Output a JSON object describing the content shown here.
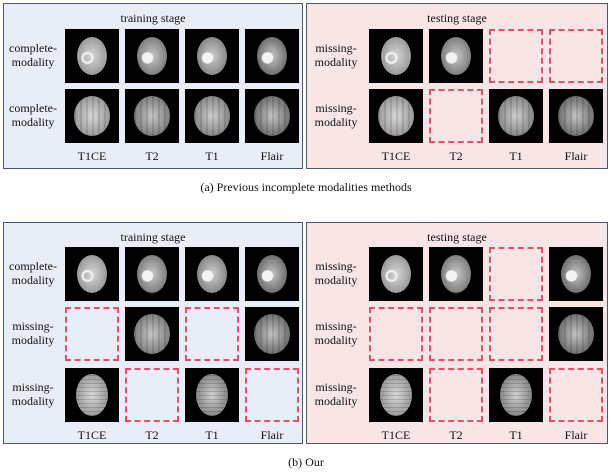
{
  "columns": [
    "T1CE",
    "T2",
    "T1",
    "Flair"
  ],
  "colors": {
    "train_bg": "#e9edf8",
    "test_bg": "#f8e5e5",
    "border": "#4b5872",
    "missing_dash": "#e8506a"
  },
  "figures": [
    {
      "caption": "(a)  Previous incomplete modalities methods",
      "panels": [
        {
          "kind": "train",
          "title": "training stage",
          "rows": [
            {
              "label": [
                "complete-",
                "modality"
              ],
              "cells": [
                "present",
                "present",
                "present",
                "present"
              ],
              "slice": "upper"
            },
            {
              "label": [
                "complete-",
                "modality"
              ],
              "cells": [
                "present",
                "present",
                "present",
                "present"
              ],
              "slice": "lower"
            }
          ]
        },
        {
          "kind": "test",
          "title": "testing stage",
          "rows": [
            {
              "label": [
                "missing-",
                "modality"
              ],
              "cells": [
                "present",
                "present",
                "missing",
                "missing"
              ],
              "slice": "upper"
            },
            {
              "label": [
                "missing-",
                "modality"
              ],
              "cells": [
                "present",
                "missing",
                "present",
                "present"
              ],
              "slice": "lower"
            }
          ]
        }
      ]
    },
    {
      "caption": "(b)  Our",
      "panels": [
        {
          "kind": "train",
          "title": "training stage",
          "rows": [
            {
              "label": [
                "complete-",
                "modality"
              ],
              "cells": [
                "present",
                "present",
                "present",
                "present"
              ],
              "slice": "upper"
            },
            {
              "label": [
                "missing-",
                "modality"
              ],
              "cells": [
                "missing",
                "present",
                "missing",
                "present"
              ],
              "slice": "lower"
            },
            {
              "label": [
                "missing-",
                "modality"
              ],
              "cells": [
                "present",
                "missing",
                "present",
                "missing"
              ],
              "slice": "top"
            }
          ]
        },
        {
          "kind": "test",
          "title": "testing stage",
          "rows": [
            {
              "label": [
                "missing-",
                "modality"
              ],
              "cells": [
                "present",
                "present",
                "missing",
                "present"
              ],
              "slice": "upper"
            },
            {
              "label": [
                "missing-",
                "modality"
              ],
              "cells": [
                "missing",
                "missing",
                "missing",
                "present"
              ],
              "slice": "lower"
            },
            {
              "label": [
                "missing-",
                "modality"
              ],
              "cells": [
                "present",
                "missing",
                "present",
                "missing"
              ],
              "slice": "top"
            }
          ]
        }
      ]
    }
  ]
}
